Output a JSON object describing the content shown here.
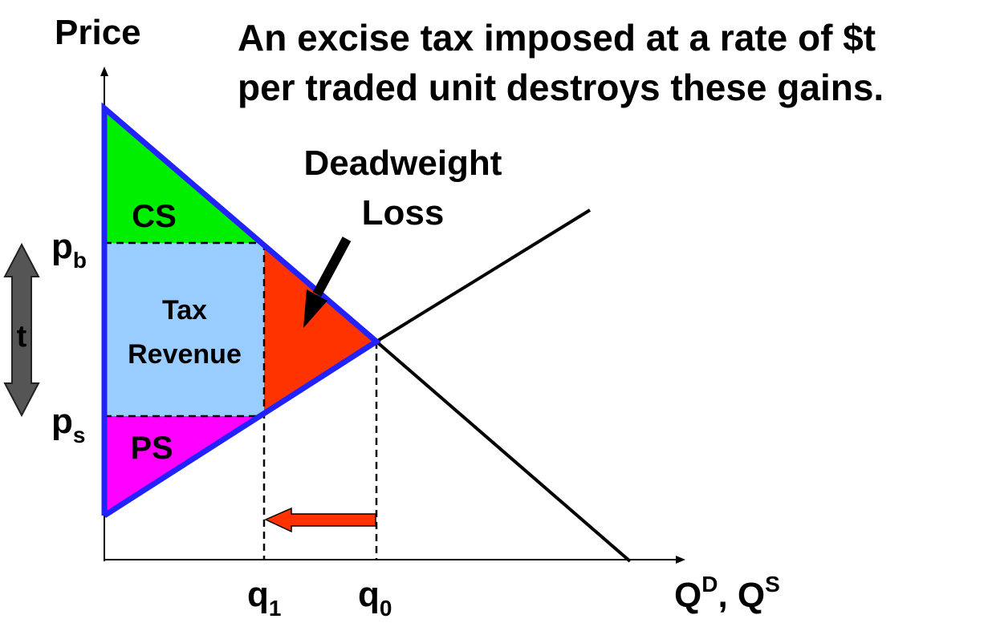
{
  "title_line1": "An excise tax imposed at a rate of $t",
  "title_line2": "per traded unit destroys these gains.",
  "axes": {
    "y_label": "Price",
    "x_label_q": "Q",
    "x_label_sup_d": "D",
    "x_label_sep": ", Q",
    "x_label_sup_s": "S"
  },
  "price_labels": {
    "pb_base": "p",
    "pb_sub": "b",
    "ps_base": "p",
    "ps_sub": "s"
  },
  "quantity_labels": {
    "q1_base": "q",
    "q1_sub": "1",
    "q0_base": "q",
    "q0_sub": "0"
  },
  "regions": {
    "cs": "CS",
    "ps": "PS",
    "tax_line1": "Tax",
    "tax_line2": "Revenue"
  },
  "tax_arrow_label": "t",
  "dwl": {
    "line1": "Deadweight",
    "line2": "Loss"
  },
  "colors": {
    "cs": "#00ee00",
    "ps": "#ff00ff",
    "tax_revenue": "#99ccff",
    "deadweight_loss": "#ff3300",
    "curve_highlight": "#2222ff",
    "tax_arrow": "#555555",
    "shift_arrow": "#ff3300"
  }
}
